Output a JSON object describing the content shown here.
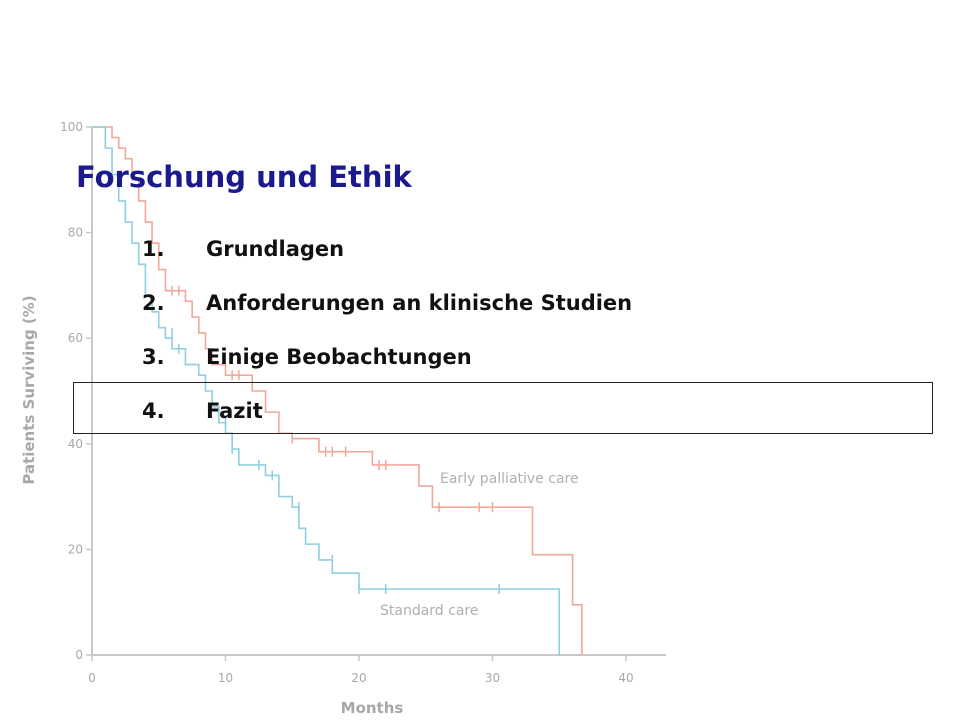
{
  "slide": {
    "title": "Forschung und Ethik",
    "agenda": [
      {
        "num": "1.",
        "label": "Grundlagen"
      },
      {
        "num": "2.",
        "label": "Anforderungen an klinische Studien"
      },
      {
        "num": "3.",
        "label": "Einige Beobachtungen"
      },
      {
        "num": "4.",
        "label": "Fazit"
      }
    ],
    "highlighted_index": 3
  },
  "chart_data": {
    "type": "line",
    "xlabel": "Months",
    "ylabel": "Patients Surviving (%)",
    "xlim": [
      0,
      43
    ],
    "ylim": [
      0,
      100
    ],
    "xticks": [
      0,
      10,
      20,
      30,
      40
    ],
    "yticks": [
      0,
      20,
      40,
      60,
      80,
      100
    ],
    "grid": false,
    "series": [
      {
        "name": "Early palliative care",
        "color": "#f0a898",
        "step": [
          [
            0,
            100
          ],
          [
            1.5,
            98
          ],
          [
            2,
            96
          ],
          [
            2.5,
            94
          ],
          [
            3,
            90
          ],
          [
            3.5,
            86
          ],
          [
            4,
            82
          ],
          [
            4.5,
            78
          ],
          [
            5,
            73
          ],
          [
            5.5,
            69
          ],
          [
            7,
            67
          ],
          [
            7.5,
            64
          ],
          [
            8,
            61
          ],
          [
            8.5,
            58
          ],
          [
            9,
            55
          ],
          [
            10,
            53
          ],
          [
            12,
            50
          ],
          [
            13,
            46
          ],
          [
            14,
            42
          ],
          [
            15,
            41
          ],
          [
            17,
            38.5
          ],
          [
            21,
            36
          ],
          [
            24.5,
            32
          ],
          [
            25.5,
            28
          ],
          [
            33,
            19
          ],
          [
            36,
            9.5
          ],
          [
            36.7,
            0
          ]
        ],
        "censor": [
          [
            6,
            69
          ],
          [
            6.5,
            69
          ],
          [
            10.5,
            53
          ],
          [
            11,
            53
          ],
          [
            15,
            41
          ],
          [
            17.5,
            38.5
          ],
          [
            18,
            38.5
          ],
          [
            19,
            38.5
          ],
          [
            21.5,
            36
          ],
          [
            22,
            36
          ],
          [
            26,
            28
          ],
          [
            29,
            28
          ],
          [
            30,
            28
          ]
        ]
      },
      {
        "name": "Standard care",
        "color": "#8fcfe0",
        "step": [
          [
            0,
            100
          ],
          [
            1,
            96
          ],
          [
            1.5,
            91
          ],
          [
            2,
            86
          ],
          [
            2.5,
            82
          ],
          [
            3,
            78
          ],
          [
            3.5,
            74
          ],
          [
            4,
            68
          ],
          [
            4.5,
            65
          ],
          [
            5,
            62
          ],
          [
            5.5,
            60
          ],
          [
            6,
            58
          ],
          [
            7,
            55
          ],
          [
            8,
            53
          ],
          [
            8.5,
            50
          ],
          [
            9,
            47
          ],
          [
            9.5,
            44
          ],
          [
            10,
            42
          ],
          [
            10.5,
            39
          ],
          [
            11,
            36
          ],
          [
            13,
            34
          ],
          [
            14,
            30
          ],
          [
            15,
            28
          ],
          [
            15.5,
            24
          ],
          [
            16,
            21
          ],
          [
            17,
            18
          ],
          [
            18,
            15.5
          ],
          [
            20,
            12.5
          ],
          [
            35,
            0
          ]
        ],
        "censor": [
          [
            6,
            61
          ],
          [
            6.5,
            58
          ],
          [
            10,
            44
          ],
          [
            10.5,
            39
          ],
          [
            12.5,
            36
          ],
          [
            13.5,
            34
          ],
          [
            15.5,
            28
          ],
          [
            18,
            18
          ],
          [
            20,
            12.5
          ],
          [
            22,
            12.5
          ],
          [
            30.5,
            12.5
          ]
        ]
      }
    ]
  }
}
